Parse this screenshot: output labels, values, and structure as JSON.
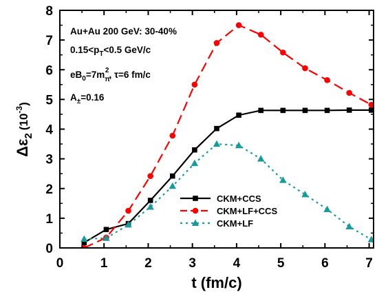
{
  "chart_data": {
    "type": "line",
    "xlabel": "t (fm/c)",
    "ylabel_main": "Δε",
    "ylabel_sub": "2",
    "ylabel_unit_open": "(10",
    "ylabel_unit_exp": "-3",
    "ylabel_unit_close": ")",
    "xlim": [
      0,
      7.1
    ],
    "ylim": [
      0,
      8
    ],
    "xticks": [
      0,
      1,
      2,
      3,
      4,
      5,
      6,
      7
    ],
    "yticks": [
      0,
      1,
      2,
      3,
      4,
      5,
      6,
      7,
      8
    ],
    "legend_position": "lower-right",
    "annotations": [
      "Au+Au 200 GeV: 30-40%",
      "0.15<p_T<0.5 GeV/c",
      "eB_0=7m_π^2, τ=6 fm/c",
      "A_±=0.16"
    ],
    "annotation_parts": {
      "line1": "Au+Au 200 GeV: 30-40%",
      "line2_a": "0.15<p",
      "line2_sub": "T",
      "line2_b": "<0.5 GeV/c",
      "line3_a": "eB",
      "line3_sub0": "0",
      "line3_b": "=7m",
      "line3_sub": "π",
      "line3_sup": "2",
      "line3_c": ", τ=6 fm/c",
      "line4_a": "A",
      "line4_sub": "±",
      "line4_b": "=0.16"
    },
    "series": [
      {
        "name": "CKM+CCS",
        "color": "#000000",
        "line_style": "solid",
        "marker": "square",
        "x": [
          0.55,
          1.05,
          1.55,
          2.05,
          2.55,
          3.05,
          3.55,
          4.05,
          4.55,
          5.05,
          5.55,
          6.05,
          6.55,
          7.05
        ],
        "y": [
          0.18,
          0.62,
          0.82,
          1.6,
          2.42,
          3.3,
          4.02,
          4.47,
          4.63,
          4.63,
          4.63,
          4.63,
          4.64,
          4.64
        ]
      },
      {
        "name": "CKM+LF+CCS",
        "color": "#ff0000",
        "line_style": "dashed",
        "marker": "circle",
        "x": [
          0.55,
          1.05,
          1.55,
          2.05,
          2.55,
          3.05,
          3.55,
          4.05,
          4.55,
          5.05,
          5.55,
          6.05,
          6.55,
          7.05
        ],
        "y": [
          0.0,
          0.35,
          1.25,
          2.42,
          3.78,
          5.5,
          6.9,
          7.5,
          7.18,
          6.58,
          6.05,
          5.65,
          5.22,
          4.82
        ]
      },
      {
        "name": "CKM+LF",
        "color": "#1a9a9a",
        "line_style": "dotted",
        "marker": "triangle",
        "x": [
          0.55,
          1.05,
          1.55,
          2.05,
          2.55,
          3.05,
          3.55,
          4.05,
          4.55,
          5.05,
          5.55,
          6.05,
          6.55,
          7.05
        ],
        "y": [
          0.3,
          0.33,
          0.78,
          1.38,
          2.08,
          2.85,
          3.5,
          3.45,
          3.0,
          2.28,
          1.8,
          1.3,
          0.72,
          0.28
        ]
      }
    ]
  }
}
